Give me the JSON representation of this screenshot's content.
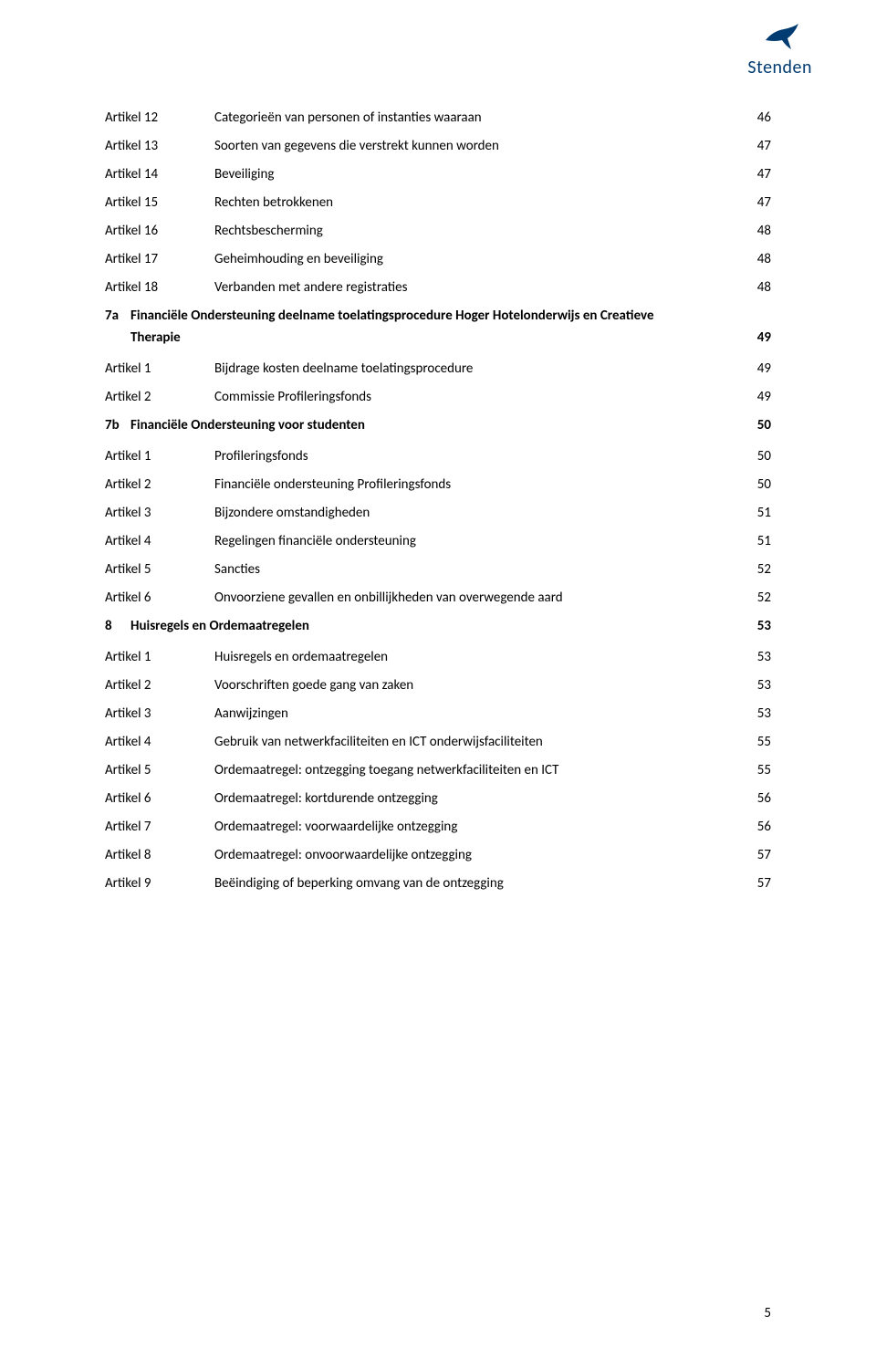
{
  "logo": {
    "text": "Stenden",
    "color": "#003b71"
  },
  "footerPageNumber": "5",
  "entries": [
    {
      "type": "article",
      "label": "Artikel 12",
      "title": "Categorieën van personen of instanties waaraan",
      "page": "46"
    },
    {
      "type": "article",
      "label": "Artikel 13",
      "title": "Soorten van gegevens die verstrekt kunnen worden",
      "page": "47"
    },
    {
      "type": "article",
      "label": "Artikel 14",
      "title": "Beveiliging",
      "page": "47"
    },
    {
      "type": "article",
      "label": "Artikel 15",
      "title": "Rechten betrokkenen",
      "page": "47"
    },
    {
      "type": "article",
      "label": "Artikel 16",
      "title": "Rechtsbescherming",
      "page": "48"
    },
    {
      "type": "article",
      "label": "Artikel 17",
      "title": "Geheimhouding en beveiliging",
      "page": "48"
    },
    {
      "type": "article",
      "label": "Artikel 18",
      "title": "Verbanden met andere registraties",
      "page": "48"
    },
    {
      "type": "section",
      "num": "7a",
      "title_line1": "Financiële Ondersteuning deelname toelatingsprocedure Hoger Hotelonderwijs en Creatieve",
      "title_line2": "Therapie",
      "page": "49"
    },
    {
      "type": "article",
      "label": "Artikel 1",
      "title": "Bijdrage kosten deelname toelatingsprocedure",
      "page": "49"
    },
    {
      "type": "article",
      "label": "Artikel 2",
      "title": "Commissie Profileringsfonds",
      "page": "49"
    },
    {
      "type": "section",
      "num": "7b",
      "title_line1": "Financiële Ondersteuning voor studenten",
      "page": "50"
    },
    {
      "type": "article",
      "label": "Artikel 1",
      "title": "Profileringsfonds",
      "page": "50"
    },
    {
      "type": "article",
      "label": "Artikel 2",
      "title": "Financiële ondersteuning Profileringsfonds",
      "page": "50"
    },
    {
      "type": "article",
      "label": "Artikel 3",
      "title": "Bijzondere omstandigheden",
      "page": "51"
    },
    {
      "type": "article",
      "label": "Artikel 4",
      "title": "Regelingen financiële ondersteuning",
      "page": "51"
    },
    {
      "type": "article",
      "label": "Artikel 5",
      "title": "Sancties",
      "page": "52"
    },
    {
      "type": "article",
      "label": "Artikel 6",
      "title": "Onvoorziene gevallen en onbillijkheden van overwegende aard",
      "page": "52"
    },
    {
      "type": "section",
      "num": "8",
      "title_line1": "Huisregels en Ordemaatregelen",
      "page": "53"
    },
    {
      "type": "article",
      "label": "Artikel 1",
      "title": "Huisregels en ordemaatregelen",
      "page": "53"
    },
    {
      "type": "article",
      "label": "Artikel 2",
      "title": "Voorschriften goede gang van zaken",
      "page": "53"
    },
    {
      "type": "article",
      "label": "Artikel 3",
      "title": "Aanwijzingen",
      "page": "53"
    },
    {
      "type": "article",
      "label": "Artikel 4",
      "title": "Gebruik van netwerkfaciliteiten en ICT onderwijsfaciliteiten",
      "page": "55"
    },
    {
      "type": "article",
      "label": "Artikel 5",
      "title": "Ordemaatregel: ontzegging toegang netwerkfaciliteiten en ICT",
      "page": "55"
    },
    {
      "type": "article",
      "label": "Artikel 6",
      "title": "Ordemaatregel: kortdurende ontzegging",
      "page": "56"
    },
    {
      "type": "article",
      "label": "Artikel 7",
      "title": "Ordemaatregel: voorwaardelijke ontzegging",
      "page": "56"
    },
    {
      "type": "article",
      "label": "Artikel 8",
      "title": "Ordemaatregel: onvoorwaardelijke ontzegging",
      "page": "57"
    },
    {
      "type": "article",
      "label": "Artikel 9",
      "title": "Beëindiging of beperking omvang van de ontzegging",
      "page": "57"
    }
  ]
}
